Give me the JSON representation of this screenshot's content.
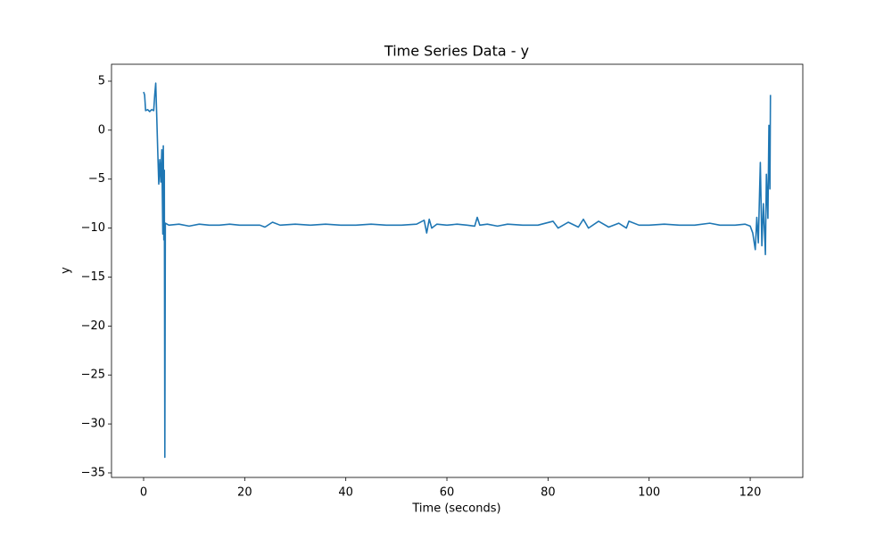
{
  "chart_data": {
    "type": "line",
    "title": "Time Series Data - y",
    "xlabel": "Time (seconds)",
    "ylabel": "y",
    "color": "#1f77b4",
    "x": [
      0,
      0.2,
      0.4,
      0.8,
      1.2,
      1.6,
      2.0,
      2.2,
      2.4,
      2.6,
      2.8,
      3.0,
      3.2,
      3.4,
      3.6,
      3.8,
      3.9,
      4.0,
      4.1,
      4.2,
      4.3,
      5,
      7,
      9,
      11,
      13,
      15,
      17,
      19,
      21,
      23,
      24,
      25.5,
      27,
      30,
      33,
      36,
      39,
      42,
      45,
      48,
      51,
      54,
      55.5,
      56,
      56.5,
      57,
      58,
      60,
      62,
      64,
      65.5,
      66,
      66.5,
      68,
      70,
      72,
      75,
      78,
      81,
      82,
      84,
      86,
      87,
      88,
      90,
      92,
      94,
      95.5,
      96,
      98,
      100,
      103,
      106,
      109,
      112,
      114,
      117,
      119,
      120,
      120.5,
      121,
      121.3,
      121.6,
      122,
      122.3,
      122.6,
      123,
      123.2,
      123.5,
      123.7,
      123.9,
      124
    ],
    "values": [
      3.9,
      3.6,
      2.0,
      2.1,
      1.9,
      2.1,
      2.0,
      3.6,
      4.8,
      1.4,
      -2.2,
      -5.5,
      -3.0,
      -5.3,
      -2.0,
      -10.6,
      -1.6,
      -11.2,
      -4.1,
      -33.4,
      -9.5,
      -9.7,
      -9.6,
      -9.8,
      -9.6,
      -9.7,
      -9.7,
      -9.6,
      -9.7,
      -9.7,
      -9.7,
      -9.9,
      -9.4,
      -9.7,
      -9.6,
      -9.7,
      -9.6,
      -9.7,
      -9.7,
      -9.6,
      -9.7,
      -9.7,
      -9.6,
      -9.2,
      -10.5,
      -9.1,
      -10.0,
      -9.6,
      -9.7,
      -9.6,
      -9.7,
      -9.8,
      -8.9,
      -9.7,
      -9.6,
      -9.8,
      -9.6,
      -9.7,
      -9.7,
      -9.3,
      -10.0,
      -9.4,
      -9.9,
      -9.1,
      -10.0,
      -9.3,
      -9.9,
      -9.5,
      -10.0,
      -9.3,
      -9.7,
      -9.7,
      -9.6,
      -9.7,
      -9.7,
      -9.5,
      -9.7,
      -9.7,
      -9.6,
      -9.8,
      -10.5,
      -12.2,
      -8.9,
      -11.5,
      -3.3,
      -11.8,
      -7.5,
      -12.7,
      -4.5,
      -9.0,
      0.5,
      -6.0,
      3.6
    ],
    "xlim": [
      -6.35,
      130.4
    ],
    "xticks": [
      0,
      20,
      40,
      60,
      80,
      100,
      120
    ],
    "ylim": [
      -35.46,
      6.73
    ],
    "yticks": [
      {
        "value": -35,
        "label": "−35"
      },
      {
        "value": -30,
        "label": "−30"
      },
      {
        "value": -25,
        "label": "−25"
      },
      {
        "value": -20,
        "label": "−20"
      },
      {
        "value": -15,
        "label": "−15"
      },
      {
        "value": -10,
        "label": "−10"
      },
      {
        "value": -5,
        "label": "−5"
      },
      0,
      5
    ]
  }
}
